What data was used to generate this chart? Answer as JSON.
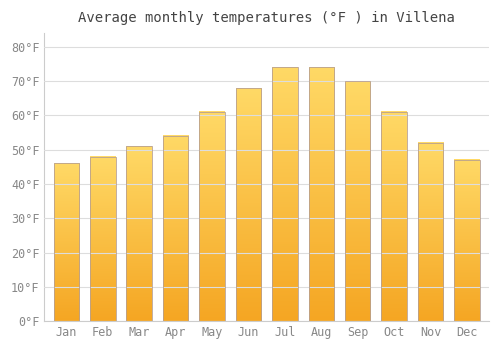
{
  "months": [
    "Jan",
    "Feb",
    "Mar",
    "Apr",
    "May",
    "Jun",
    "Jul",
    "Aug",
    "Sep",
    "Oct",
    "Nov",
    "Dec"
  ],
  "values": [
    46,
    48,
    51,
    54,
    61,
    68,
    74,
    74,
    70,
    61,
    52,
    47
  ],
  "bar_color_bottom": "#F5A623",
  "bar_color_top": "#FFD966",
  "bar_edge_color": "#B8A090",
  "title": "Average monthly temperatures (°F ) in Villena",
  "ylim": [
    0,
    84
  ],
  "yticks": [
    0,
    10,
    20,
    30,
    40,
    50,
    60,
    70,
    80
  ],
  "background_color": "#FFFFFF",
  "grid_color": "#DDDDDD",
  "title_color": "#444444",
  "tick_color": "#888888",
  "title_fontsize": 10,
  "tick_fontsize": 8.5,
  "bar_width": 0.7
}
